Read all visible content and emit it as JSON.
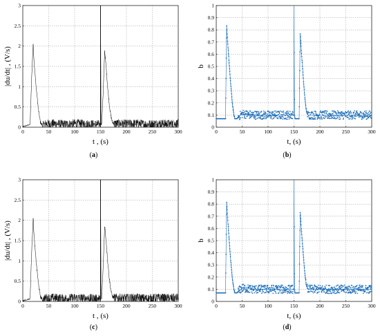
{
  "chart_data": [
    {
      "type": "line",
      "caption_open": "(",
      "caption_letter": "a",
      "caption_close": ")",
      "xlabel": "t , (s)",
      "ylabel": "|du/dt| , (V/s)",
      "xlim": [
        0,
        300
      ],
      "ylim": [
        0,
        3
      ],
      "xticks": [
        "0",
        "50",
        "100",
        "150",
        "200",
        "250",
        "300"
      ],
      "yticks": [
        "0",
        "0.5",
        "1",
        "1.5",
        "2",
        "2.5",
        "3"
      ],
      "grid": true,
      "color": "#000000",
      "series": [
        {
          "x": [
            0,
            14,
            17,
            20,
            22,
            26,
            30,
            34,
            38,
            42,
            46,
            50,
            60,
            80,
            100,
            120,
            140,
            149,
            150,
            150,
            151,
            152,
            155,
            158,
            161,
            164,
            167,
            170,
            173,
            176,
            180,
            200,
            220,
            240,
            260,
            280,
            300
          ],
          "y": [
            0,
            0.05,
            1.2,
            2.07,
            1.55,
            0.95,
            0.45,
            0.12,
            0.04,
            0.08,
            0.1,
            0.09,
            0.1,
            0.08,
            0.1,
            0.09,
            0.08,
            0.08,
            0.15,
            3.0,
            0.1,
            0.05,
            0.8,
            1.88,
            1.45,
            0.95,
            0.55,
            0.28,
            0.12,
            0.09,
            0.1,
            0.09,
            0.1,
            0.08,
            0.1,
            0.09,
            0.1
          ]
        }
      ]
    },
    {
      "type": "scatter",
      "caption_open": "(",
      "caption_letter": "b",
      "caption_close": ")",
      "xlabel": "t, (s)",
      "ylabel": "b",
      "xlim": [
        0,
        300
      ],
      "ylim": [
        0,
        1
      ],
      "xticks": [
        "0",
        "50",
        "100",
        "150",
        "200",
        "250",
        "300"
      ],
      "yticks": [
        "0",
        "0.1",
        "0.2",
        "0.3",
        "0.4",
        "0.5",
        "0.6",
        "0.7",
        "0.8",
        "0.9",
        "1"
      ],
      "grid": true,
      "color": "#1f6fba",
      "series": [
        {
          "x": [
            0,
            18,
            20,
            22,
            25,
            28,
            31,
            34,
            36,
            38,
            40,
            44,
            50,
            70,
            100,
            130,
            148,
            150,
            150,
            151,
            152,
            160,
            162,
            165,
            168,
            171,
            174,
            177,
            180,
            200,
            230,
            260,
            300
          ],
          "y": [
            0.07,
            0.07,
            0.84,
            0.7,
            0.52,
            0.35,
            0.2,
            0.1,
            0.07,
            0.07,
            0.07,
            0.09,
            0.11,
            0.1,
            0.1,
            0.1,
            0.1,
            0.1,
            1.0,
            0.1,
            0.07,
            0.07,
            0.77,
            0.58,
            0.4,
            0.24,
            0.13,
            0.1,
            0.1,
            0.1,
            0.1,
            0.1,
            0.1
          ]
        }
      ]
    },
    {
      "type": "line",
      "caption_open": "(",
      "caption_letter": "c",
      "caption_close": ")",
      "xlabel": "t , (s)",
      "ylabel": "|du/dt| , (V/s)",
      "xlim": [
        0,
        300
      ],
      "ylim": [
        0,
        3
      ],
      "xticks": [
        "0",
        "50",
        "100",
        "150",
        "200",
        "250",
        "300"
      ],
      "yticks": [
        "0",
        "0.5",
        "1",
        "1.5",
        "2",
        "2.5",
        "3"
      ],
      "grid": true,
      "color": "#000000",
      "series": [
        {
          "x": [
            0,
            14,
            17,
            20,
            22,
            26,
            30,
            34,
            38,
            42,
            46,
            50,
            60,
            80,
            100,
            120,
            140,
            149,
            150,
            150,
            151,
            152,
            155,
            158,
            161,
            164,
            167,
            170,
            173,
            176,
            180,
            200,
            220,
            240,
            260,
            280,
            300
          ],
          "y": [
            0,
            0.05,
            1.2,
            2.07,
            1.55,
            0.95,
            0.45,
            0.12,
            0.04,
            0.08,
            0.1,
            0.09,
            0.1,
            0.08,
            0.1,
            0.09,
            0.08,
            0.08,
            0.15,
            3.0,
            0.1,
            0.05,
            0.8,
            1.88,
            1.45,
            0.95,
            0.55,
            0.28,
            0.12,
            0.09,
            0.1,
            0.09,
            0.1,
            0.08,
            0.1,
            0.09,
            0.1
          ]
        }
      ]
    },
    {
      "type": "scatter",
      "caption_open": "(",
      "caption_letter": "d",
      "caption_close": ")",
      "xlabel": "t, (s)",
      "ylabel": "b",
      "xlim": [
        0,
        300
      ],
      "ylim": [
        0,
        1
      ],
      "xticks": [
        "0",
        "50",
        "100",
        "150",
        "200",
        "250",
        "300"
      ],
      "yticks": [
        "0",
        "0.1",
        "0.2",
        "0.3",
        "0.4",
        "0.5",
        "0.6",
        "0.7",
        "0.8",
        "0.9",
        "1"
      ],
      "grid": true,
      "color": "#1f6fba",
      "series": [
        {
          "x": [
            0,
            18,
            20,
            22,
            25,
            28,
            31,
            34,
            36,
            38,
            40,
            44,
            50,
            70,
            100,
            130,
            148,
            150,
            150,
            151,
            152,
            160,
            162,
            165,
            168,
            171,
            174,
            177,
            180,
            200,
            230,
            260,
            300
          ],
          "y": [
            0.07,
            0.07,
            0.82,
            0.68,
            0.5,
            0.33,
            0.19,
            0.1,
            0.07,
            0.07,
            0.07,
            0.09,
            0.11,
            0.1,
            0.1,
            0.1,
            0.1,
            0.1,
            1.0,
            0.1,
            0.07,
            0.07,
            0.73,
            0.55,
            0.38,
            0.23,
            0.13,
            0.1,
            0.1,
            0.1,
            0.1,
            0.1,
            0.1
          ]
        }
      ]
    }
  ]
}
